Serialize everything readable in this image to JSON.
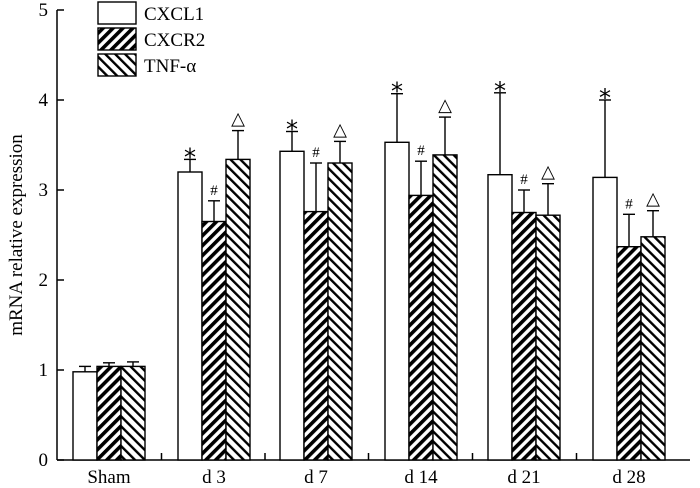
{
  "chart_data": {
    "type": "bar",
    "categories": [
      "Sham",
      "d 3",
      "d 7",
      "d 14",
      "d 21",
      "d 28"
    ],
    "ylabel": "mRNA relative expression",
    "ylim": [
      0,
      5
    ],
    "yticks": [
      "0",
      "1",
      "2",
      "3",
      "4",
      "5"
    ],
    "grid": false,
    "legend": "top-left",
    "series": [
      {
        "name": "CXCL1",
        "fill": "white",
        "values": [
          0.98,
          3.2,
          3.43,
          3.53,
          3.17,
          3.14
        ],
        "errors": [
          0.06,
          0.14,
          0.22,
          0.54,
          0.91,
          0.86
        ],
        "annotations": [
          "",
          "*",
          "*",
          "*",
          "*",
          "*"
        ]
      },
      {
        "name": "CXCR2",
        "fill": "hatch-forward",
        "values": [
          1.04,
          2.65,
          2.76,
          2.94,
          2.75,
          2.37
        ],
        "errors": [
          0.04,
          0.23,
          0.54,
          0.38,
          0.25,
          0.36
        ],
        "annotations": [
          "",
          "#",
          "#",
          "#",
          "#",
          "#"
        ]
      },
      {
        "name": "TNF-α",
        "fill": "hatch-back",
        "values": [
          1.04,
          3.34,
          3.3,
          3.39,
          2.72,
          2.48
        ],
        "errors": [
          0.05,
          0.32,
          0.24,
          0.42,
          0.35,
          0.29
        ],
        "annotations": [
          "",
          "△",
          "△",
          "△",
          "△",
          "△"
        ]
      }
    ]
  }
}
